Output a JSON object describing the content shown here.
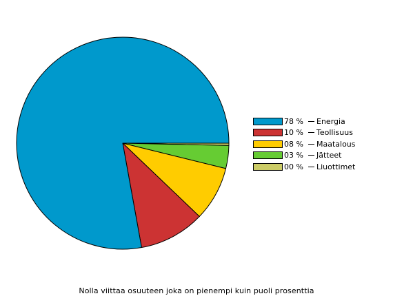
{
  "chart_data": {
    "type": "pie",
    "title": "",
    "categories": [
      "Energia",
      "Teollisuus",
      "Maatalous",
      "Jätteet",
      "Liuottimet"
    ],
    "values": [
      77.85,
      10.0,
      8.3,
      3.5,
      0.35
    ],
    "percent_labels": [
      "78 %",
      "10 %",
      "08 %",
      "03 %",
      "00 %"
    ],
    "colors": [
      "#0099CC",
      "#CC3333",
      "#FFCC00",
      "#66CC33",
      "#CCCC66"
    ],
    "legend_position": "right"
  },
  "footnote": "Nolla viittaa osuuteen joka on pienempi kuin puoli prosenttia"
}
